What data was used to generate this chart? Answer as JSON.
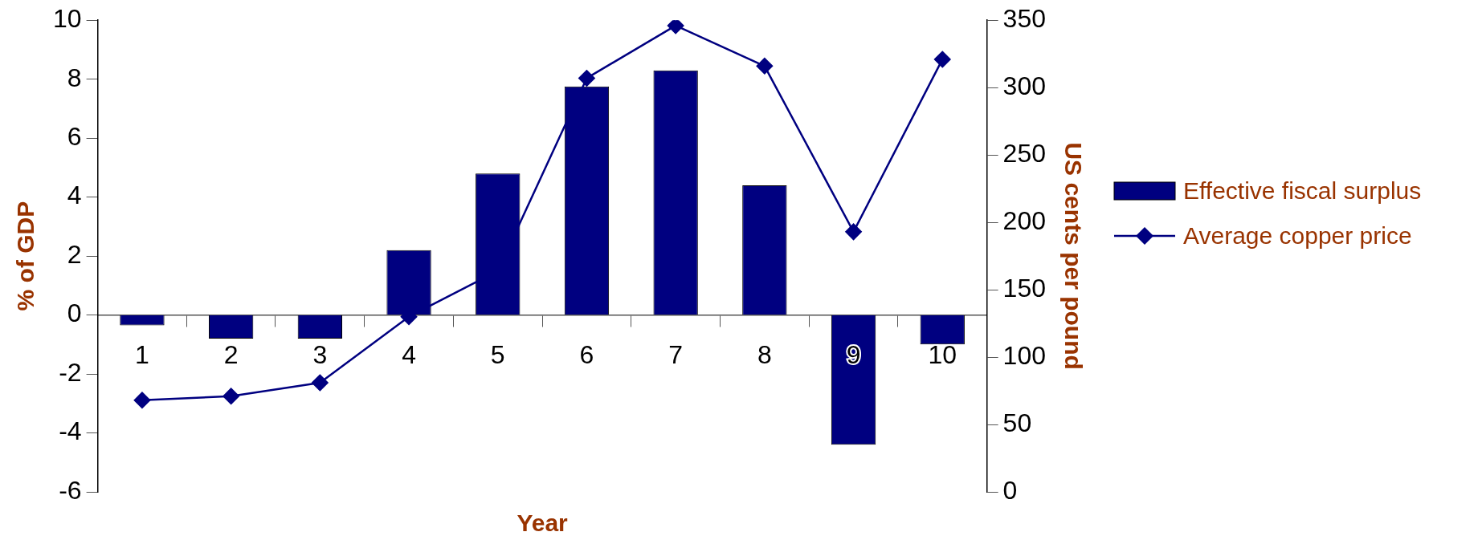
{
  "chart_data": {
    "type": "bar",
    "xlabel": "Year",
    "ylabel": "% of GDP",
    "y2label": "US cents per pound",
    "categories": [
      "1",
      "2",
      "3",
      "4",
      "5",
      "6",
      "7",
      "8",
      "9",
      "10"
    ],
    "series": [
      {
        "name": "Effective fiscal surplus",
        "color": "#000080",
        "values": [
          -0.35,
          -0.8,
          -0.8,
          2.2,
          4.8,
          7.75,
          8.3,
          4.4,
          -4.4,
          -1.0
        ]
      },
      {
        "name": "Average copper price",
        "type": "line",
        "axis": "y2",
        "color": "#000080",
        "marker": "diamond",
        "values": [
          68,
          71,
          81,
          130,
          164,
          307,
          346,
          316,
          193,
          321
        ]
      }
    ],
    "ylim": [
      -6,
      10
    ],
    "yticks": [
      -6,
      -4,
      -2,
      0,
      2,
      4,
      6,
      8,
      10
    ],
    "y2lim": [
      0,
      350
    ],
    "y2ticks": [
      0,
      50,
      100,
      150,
      200,
      250,
      300,
      350
    ],
    "grid": false,
    "legend": "right"
  }
}
